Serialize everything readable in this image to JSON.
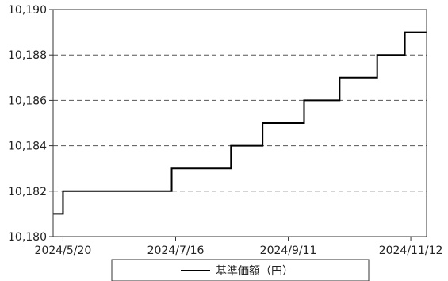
{
  "chart_data": {
    "type": "line",
    "title": "",
    "xlabel": "",
    "ylabel": "",
    "xlim": [
      "2024-05-15",
      "2024-11-20"
    ],
    "ylim": [
      10180,
      10190
    ],
    "y_ticks": [
      "10,180",
      "10,182",
      "10,184",
      "10,186",
      "10,188",
      "10,190"
    ],
    "x_ticks": [
      {
        "date": "2024-05-20",
        "label": "2024/5/20"
      },
      {
        "date": "2024-07-16",
        "label": "2024/7/16"
      },
      {
        "date": "2024-09-11",
        "label": "2024/9/11"
      },
      {
        "date": "2024-11-12",
        "label": "2024/11/12"
      }
    ],
    "grid": {
      "horizontal": "dashed",
      "vertical": false
    },
    "legend_position": "bottom-center",
    "series": [
      {
        "name": "基準価額（円）",
        "color": "#000000",
        "style": "step",
        "points": [
          {
            "x": "2024-05-15",
            "y": 10181
          },
          {
            "x": "2024-05-20",
            "y": 10182
          },
          {
            "x": "2024-07-14",
            "y": 10183
          },
          {
            "x": "2024-08-13",
            "y": 10184
          },
          {
            "x": "2024-08-29",
            "y": 10185
          },
          {
            "x": "2024-09-19",
            "y": 10186
          },
          {
            "x": "2024-10-07",
            "y": 10187
          },
          {
            "x": "2024-10-26",
            "y": 10188
          },
          {
            "x": "2024-11-09",
            "y": 10189
          },
          {
            "x": "2024-11-20",
            "y": 10189
          }
        ]
      }
    ]
  }
}
